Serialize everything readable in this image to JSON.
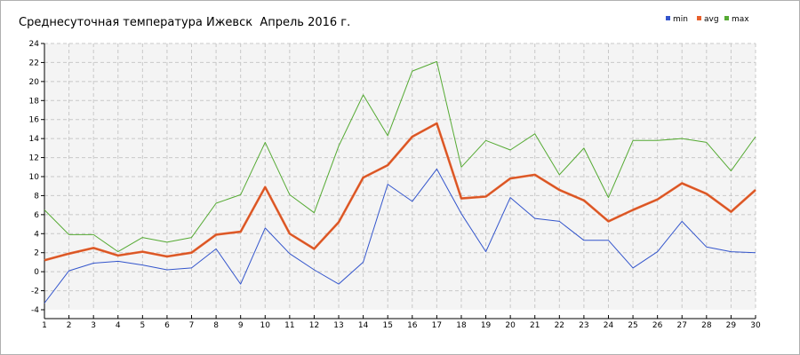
{
  "chart_data": {
    "type": "line",
    "title": "Среднесуточная температура Ижевск  Апрель 2016 г.",
    "xlabel": "",
    "ylabel": "",
    "x": [
      1,
      2,
      3,
      4,
      5,
      6,
      7,
      8,
      9,
      10,
      11,
      12,
      13,
      14,
      15,
      16,
      17,
      18,
      19,
      20,
      21,
      22,
      23,
      24,
      25,
      26,
      27,
      28,
      29,
      30
    ],
    "xlim": [
      1,
      30
    ],
    "ylim": [
      -4,
      24
    ],
    "yticks": [
      -4,
      -2,
      0,
      2,
      4,
      6,
      8,
      10,
      12,
      14,
      16,
      18,
      20,
      22,
      24
    ],
    "grid": true,
    "legend_position": "top-right",
    "series": [
      {
        "name": "min",
        "color": "#3355cc",
        "values": [
          -3.3,
          0.1,
          0.9,
          1.1,
          0.7,
          0.2,
          0.4,
          2.4,
          -1.3,
          4.6,
          1.9,
          0.2,
          -1.3,
          1.0,
          9.2,
          7.4,
          10.8,
          6.1,
          2.1,
          7.8,
          5.6,
          5.3,
          3.3,
          3.3,
          0.4,
          2.1,
          5.3,
          2.6,
          2.1,
          2.0
        ]
      },
      {
        "name": "avg",
        "color": "#e8602c",
        "values": [
          1.2,
          1.9,
          2.5,
          1.7,
          2.1,
          1.6,
          2.0,
          3.9,
          4.2,
          8.9,
          4.0,
          2.4,
          5.2,
          9.9,
          11.2,
          14.2,
          15.6,
          7.7,
          7.9,
          9.8,
          10.2,
          8.6,
          7.5,
          5.3,
          6.5,
          7.6,
          9.3,
          8.2,
          6.3,
          8.6
        ]
      },
      {
        "name": "max",
        "color": "#55aa33",
        "values": [
          6.5,
          3.9,
          3.9,
          2.1,
          3.6,
          3.1,
          3.6,
          7.2,
          8.1,
          13.6,
          8.1,
          6.2,
          13.2,
          18.6,
          14.3,
          21.1,
          22.1,
          11.0,
          13.8,
          12.8,
          14.5,
          10.2,
          13.0,
          7.8,
          13.8,
          13.8,
          14.0,
          13.6,
          10.6,
          14.2
        ]
      }
    ]
  }
}
